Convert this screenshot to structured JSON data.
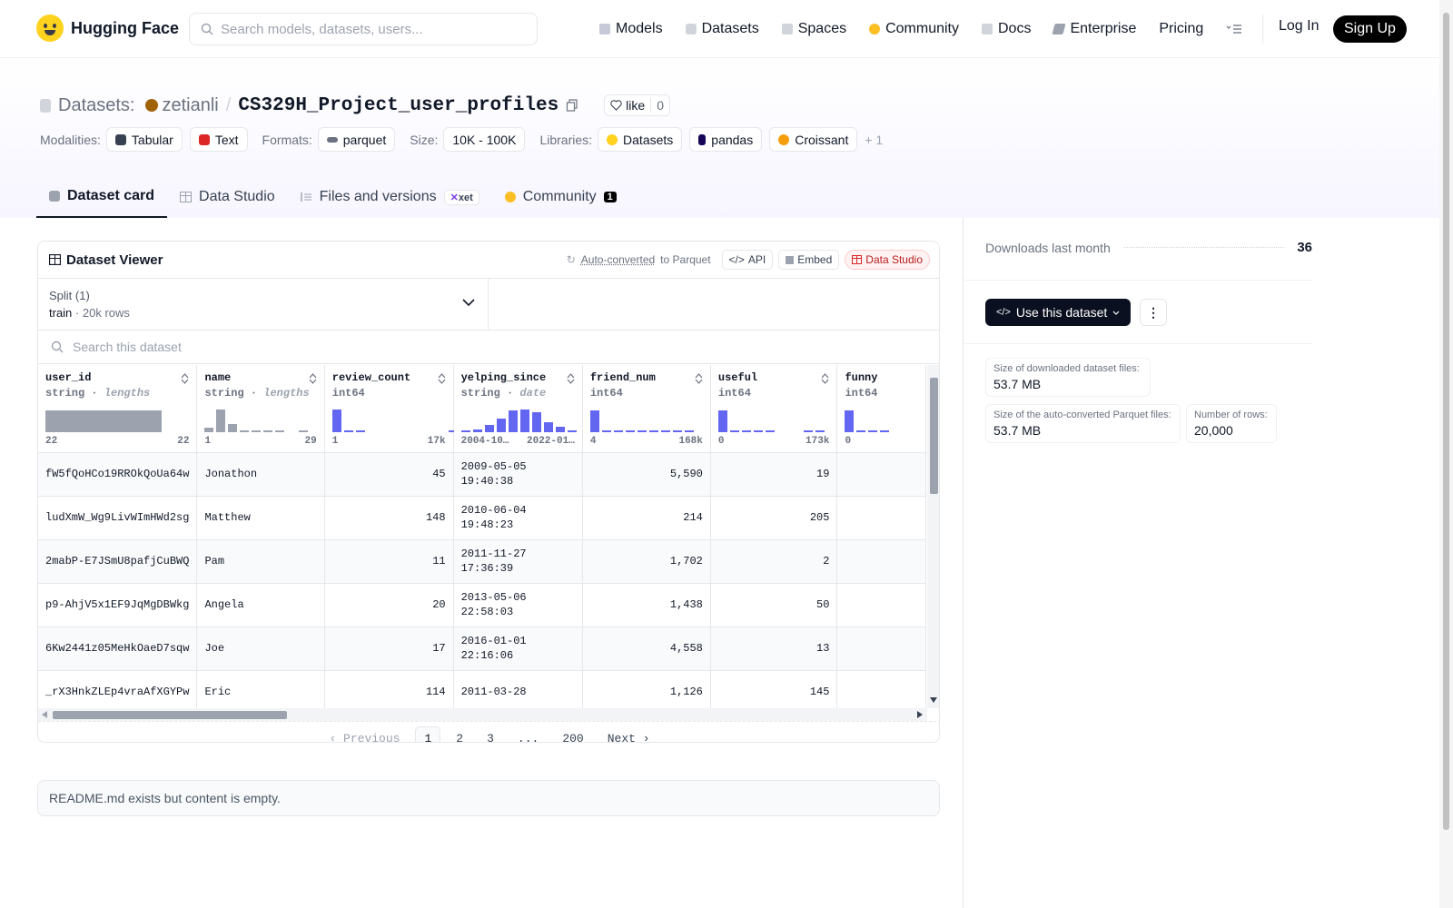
{
  "nav": {
    "brand": "Hugging Face",
    "search_placeholder": "Search models, datasets, users...",
    "links": [
      "Models",
      "Datasets",
      "Spaces",
      "Community",
      "Docs",
      "Enterprise",
      "Pricing"
    ],
    "login": "Log In",
    "signup": "Sign Up"
  },
  "header": {
    "section": "Datasets:",
    "user": "zetianli",
    "repo": "CS329H_Project_user_profiles",
    "like_label": "like",
    "like_count": "0",
    "modalities_label": "Modalities:",
    "modalities": [
      "Tabular",
      "Text"
    ],
    "formats_label": "Formats:",
    "format": "parquet",
    "size_label": "Size:",
    "size": "10K - 100K",
    "libraries_label": "Libraries:",
    "libraries": [
      "Datasets",
      "pandas",
      "Croissant"
    ],
    "libraries_more": "+ 1"
  },
  "tabs": {
    "dataset_card": "Dataset card",
    "data_studio": "Data Studio",
    "files": "Files and versions",
    "xet": "xet",
    "community": "Community",
    "community_count": "1"
  },
  "viewer": {
    "title": "Dataset Viewer",
    "auto_converted": "Auto-converted",
    "to_parquet": "to Parquet",
    "api": "API",
    "embed": "Embed",
    "data_studio": "Data Studio",
    "split_label": "Split (1)",
    "split_name": "train",
    "split_rows": "20k rows",
    "search_placeholder": "Search this dataset",
    "columns": [
      {
        "name": "user_id",
        "type": "string",
        "sub": "lengths",
        "min": "22",
        "max": "22"
      },
      {
        "name": "name",
        "type": "string",
        "sub": "lengths",
        "min": "1",
        "max": "29"
      },
      {
        "name": "review_count",
        "type": "int64",
        "sub": "",
        "min": "1",
        "max": "17k"
      },
      {
        "name": "yelping_since",
        "type": "string",
        "sub": "date",
        "min": "2004-10…",
        "max": "2022-01…"
      },
      {
        "name": "friend_num",
        "type": "int64",
        "sub": "",
        "min": "4",
        "max": "168k"
      },
      {
        "name": "useful",
        "type": "int64",
        "sub": "",
        "min": "0",
        "max": "173k"
      },
      {
        "name": "funny",
        "type": "int64",
        "sub": "",
        "min": "0",
        "max": ""
      }
    ],
    "rows": [
      {
        "user_id": "fW5fQoHCo19RROkQoUa64w",
        "name": "Jonathon",
        "review_count": "45",
        "yelping_since_d": "2009-05-05",
        "yelping_since_t": "19:40:38",
        "friend_num": "5,590",
        "useful": "19",
        "funny": ""
      },
      {
        "user_id": "ludXmW_Wg9LivWImHWd2sg",
        "name": "Matthew",
        "review_count": "148",
        "yelping_since_d": "2010-06-04",
        "yelping_since_t": "19:48:23",
        "friend_num": "214",
        "useful": "205",
        "funny": ""
      },
      {
        "user_id": "2mabP-E7JSmU8pafjCuBWQ",
        "name": "Pam",
        "review_count": "11",
        "yelping_since_d": "2011-11-27",
        "yelping_since_t": "17:36:39",
        "friend_num": "1,702",
        "useful": "2",
        "funny": ""
      },
      {
        "user_id": "p9-AhjV5x1EF9JqMgDBWkg",
        "name": "Angela",
        "review_count": "20",
        "yelping_since_d": "2013-05-06",
        "yelping_since_t": "22:58:03",
        "friend_num": "1,438",
        "useful": "50",
        "funny": ""
      },
      {
        "user_id": "6Kw2441z05MeHkOaeD7sqw",
        "name": "Joe",
        "review_count": "17",
        "yelping_since_d": "2016-01-01",
        "yelping_since_t": "22:16:06",
        "friend_num": "4,558",
        "useful": "13",
        "funny": ""
      },
      {
        "user_id": "_rX3HnkZLEp4vraAfXGYPw",
        "name": "Eric",
        "review_count": "114",
        "yelping_since_d": "2011-03-28",
        "yelping_since_t": "",
        "friend_num": "1,126",
        "useful": "145",
        "funny": ""
      }
    ],
    "pager": {
      "prev": "Previous",
      "pages": [
        "1",
        "2",
        "3",
        "...",
        "200"
      ],
      "current": "1",
      "next": "Next"
    }
  },
  "readme": "README.md exists but content is empty.",
  "sidebar": {
    "downloads_label": "Downloads last month",
    "downloads_value": "36",
    "use_button": "Use this dataset",
    "size_files_label": "Size of downloaded dataset files:",
    "size_files_value": "53.7 MB",
    "size_parquet_label": "Size of the auto-converted Parquet files:",
    "size_parquet_value": "53.7 MB",
    "rows_label": "Number of rows:",
    "rows_value": "20,000"
  },
  "colors": {
    "accent": "#6366f1",
    "nav_bg": "#ffffff",
    "header_tint": "#f7f5ff",
    "brand": "#ffd21e"
  }
}
